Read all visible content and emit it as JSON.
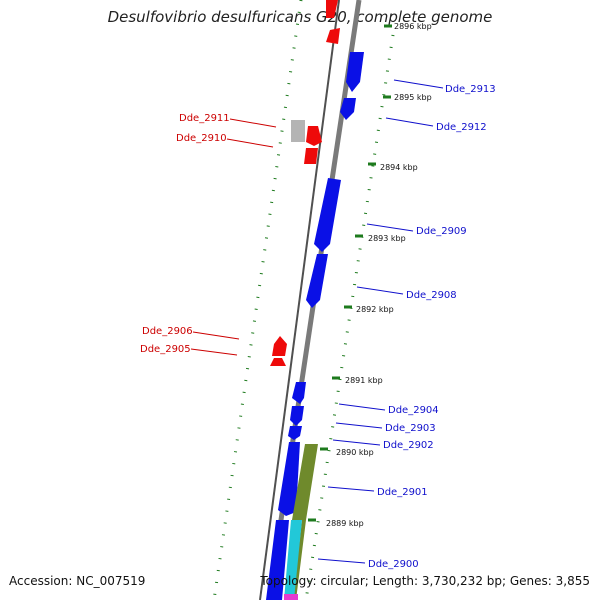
{
  "title": "Desulfovibrio desulfuricans G20, complete genome",
  "accession": "Accession: NC_007519",
  "genome_info": "Topology: circular; Length: 3,730,232 bp; Genes: 3,855",
  "colors": {
    "forward_gene": "#0a10e6",
    "reverse_gene": "#ee0a0a",
    "grey_gene": "#b4b4b4",
    "olive_feature": "#6f8a2c",
    "cyan_feature": "#22c8d8",
    "magenta_feature": "#e63ad0",
    "backbone": "#7a7a7a",
    "tick": "#1d7a1d",
    "forward_label": "#1010cc",
    "reverse_label": "#cc0000"
  },
  "ticks": [
    "2896 kbp",
    "2895 kbp",
    "2894 kbp",
    "2893 kbp",
    "2892 kbp",
    "2891 kbp",
    "2890 kbp",
    "2889 kbp"
  ],
  "forward_labels": [
    "Dde_2913",
    "Dde_2912",
    "Dde_2909",
    "Dde_2908",
    "Dde_2904",
    "Dde_2903",
    "Dde_2902",
    "Dde_2901",
    "Dde_2900"
  ],
  "reverse_labels": [
    "Dde_2911",
    "Dde_2910",
    "Dde_2906",
    "Dde_2905"
  ]
}
